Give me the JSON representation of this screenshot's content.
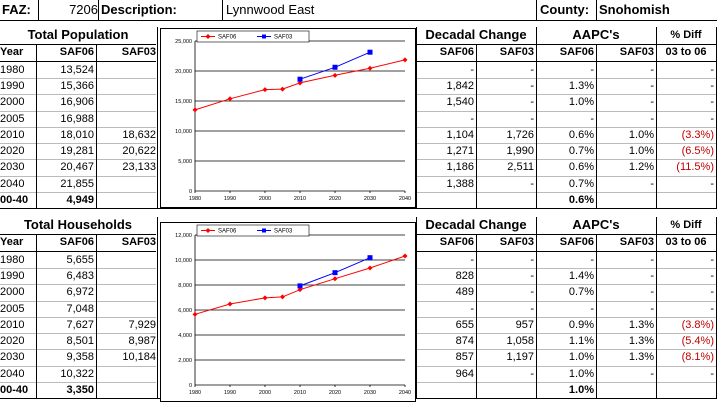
{
  "header": {
    "faz_label": "FAZ:",
    "faz_value": "7206",
    "description_label": "Description:",
    "description_value": "Lynnwood East",
    "county_label": "County:",
    "county_value": "Snohomish"
  },
  "population": {
    "title": "Total Population",
    "col_year": "Year",
    "col_saf06": "SAF06",
    "col_saf03": "SAF03",
    "decadal_title": "Decadal Change",
    "aapc_title": "AAPC's",
    "diff_title": "% Diff",
    "diff_sub": "03 to 06",
    "rows": [
      {
        "year": "1980",
        "saf06": "13,524",
        "saf03": "",
        "dc06": "-",
        "dc03": "-",
        "aapc06": "-",
        "aapc03": "-",
        "diff": "-"
      },
      {
        "year": "1990",
        "saf06": "15,366",
        "saf03": "",
        "dc06": "1,842",
        "dc03": "-",
        "aapc06": "1.3%",
        "aapc03": "-",
        "diff": "-"
      },
      {
        "year": "2000",
        "saf06": "16,906",
        "saf03": "",
        "dc06": "1,540",
        "dc03": "-",
        "aapc06": "1.0%",
        "aapc03": "-",
        "diff": "-"
      },
      {
        "year": "2005",
        "saf06": "16,988",
        "saf03": "",
        "dc06": "-",
        "dc03": "-",
        "aapc06": "-",
        "aapc03": "-",
        "diff": "-"
      },
      {
        "year": "2010",
        "saf06": "18,010",
        "saf03": "18,632",
        "dc06": "1,104",
        "dc03": "1,726",
        "aapc06": "0.6%",
        "aapc03": "1.0%",
        "diff": "(3.3%)"
      },
      {
        "year": "2020",
        "saf06": "19,281",
        "saf03": "20,622",
        "dc06": "1,271",
        "dc03": "1,990",
        "aapc06": "0.7%",
        "aapc03": "1.0%",
        "diff": "(6.5%)"
      },
      {
        "year": "2030",
        "saf06": "20,467",
        "saf03": "23,133",
        "dc06": "1,186",
        "dc03": "2,511",
        "aapc06": "0.6%",
        "aapc03": "1.2%",
        "diff": "(11.5%)"
      },
      {
        "year": "2040",
        "saf06": "21,855",
        "saf03": "",
        "dc06": "1,388",
        "dc03": "-",
        "aapc06": "0.7%",
        "aapc03": "-",
        "diff": "-"
      }
    ],
    "total_label": "00-40",
    "total_value": "4,949",
    "total_aapc": "0.6%"
  },
  "households": {
    "title": "Total Households",
    "col_year": "Year",
    "col_saf06": "SAF06",
    "col_saf03": "SAF03",
    "decadal_title": "Decadal Change",
    "aapc_title": "AAPC's",
    "diff_title": "% Diff",
    "diff_sub": "03 to 06",
    "rows": [
      {
        "year": "1980",
        "saf06": "5,655",
        "saf03": "",
        "dc06": "-",
        "dc03": "-",
        "aapc06": "-",
        "aapc03": "-",
        "diff": "-"
      },
      {
        "year": "1990",
        "saf06": "6,483",
        "saf03": "",
        "dc06": "828",
        "dc03": "-",
        "aapc06": "1.4%",
        "aapc03": "-",
        "diff": "-"
      },
      {
        "year": "2000",
        "saf06": "6,972",
        "saf03": "",
        "dc06": "489",
        "dc03": "-",
        "aapc06": "0.7%",
        "aapc03": "-",
        "diff": "-"
      },
      {
        "year": "2005",
        "saf06": "7,048",
        "saf03": "",
        "dc06": "-",
        "dc03": "-",
        "aapc06": "-",
        "aapc03": "-",
        "diff": "-"
      },
      {
        "year": "2010",
        "saf06": "7,627",
        "saf03": "7,929",
        "dc06": "655",
        "dc03": "957",
        "aapc06": "0.9%",
        "aapc03": "1.3%",
        "diff": "(3.8%)"
      },
      {
        "year": "2020",
        "saf06": "8,501",
        "saf03": "8,987",
        "dc06": "874",
        "dc03": "1,058",
        "aapc06": "1.1%",
        "aapc03": "1.3%",
        "diff": "(5.4%)"
      },
      {
        "year": "2030",
        "saf06": "9,358",
        "saf03": "10,184",
        "dc06": "857",
        "dc03": "1,197",
        "aapc06": "1.0%",
        "aapc03": "1.3%",
        "diff": "(8.1%)"
      },
      {
        "year": "2040",
        "saf06": "10,322",
        "saf03": "",
        "dc06": "964",
        "dc03": "-",
        "aapc06": "1.0%",
        "aapc03": "-",
        "diff": "-"
      }
    ],
    "total_label": "00-40",
    "total_value": "3,350",
    "total_aapc": "1.0%"
  },
  "colors": {
    "saf06": "#ff0000",
    "saf03": "#0000ff",
    "negative": "#c00000"
  },
  "chart_data": [
    {
      "type": "line",
      "x_ticks": [
        "1980",
        "1990",
        "2000",
        "2010",
        "2020",
        "2030",
        "2040"
      ],
      "y_ticks": [
        "0",
        "5,000",
        "10,000",
        "15,000",
        "20,000",
        "25,000"
      ],
      "ylim": [
        0,
        25000
      ],
      "xlim": [
        1980,
        2040
      ],
      "legend_placement": "top-left",
      "series": [
        {
          "name": "SAF06",
          "color": "#ff0000",
          "marker": "diamond",
          "x": [
            1980,
            1990,
            2000,
            2005,
            2010,
            2020,
            2030,
            2040
          ],
          "y": [
            13524,
            15366,
            16906,
            16988,
            18010,
            19281,
            20467,
            21855
          ]
        },
        {
          "name": "SAF03",
          "color": "#0000ff",
          "marker": "square",
          "x": [
            2010,
            2020,
            2030
          ],
          "y": [
            18632,
            20622,
            23133
          ]
        }
      ]
    },
    {
      "type": "line",
      "x_ticks": [
        "1980",
        "1990",
        "2000",
        "2010",
        "2020",
        "2030",
        "2040"
      ],
      "y_ticks": [
        "0",
        "2,000",
        "4,000",
        "6,000",
        "8,000",
        "10,000",
        "12,000"
      ],
      "ylim": [
        0,
        12000
      ],
      "xlim": [
        1980,
        2040
      ],
      "legend_placement": "top-left",
      "series": [
        {
          "name": "SAF06",
          "color": "#ff0000",
          "marker": "diamond",
          "x": [
            1980,
            1990,
            2000,
            2005,
            2010,
            2020,
            2030,
            2040
          ],
          "y": [
            5655,
            6483,
            6972,
            7048,
            7627,
            8501,
            9358,
            10322
          ]
        },
        {
          "name": "SAF03",
          "color": "#0000ff",
          "marker": "square",
          "x": [
            2010,
            2020,
            2030
          ],
          "y": [
            7929,
            8987,
            10184
          ]
        }
      ]
    }
  ]
}
